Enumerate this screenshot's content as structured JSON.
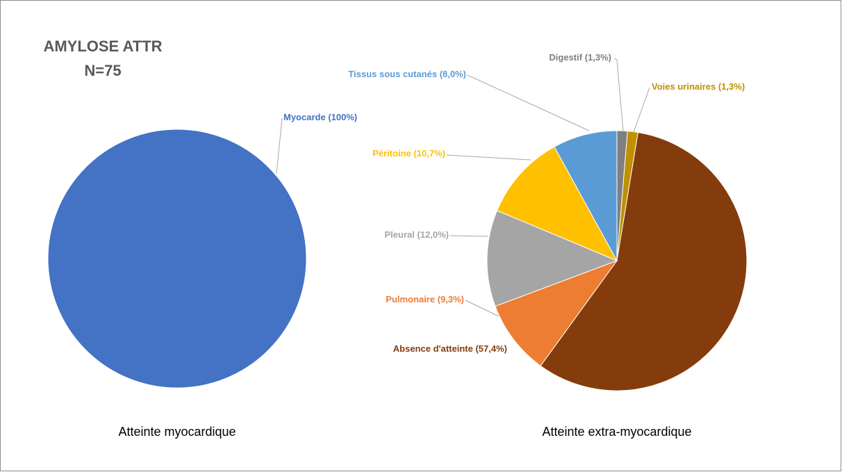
{
  "title": "AMYLOSE ATTR",
  "subtitle": "N=75",
  "chart_data": [
    {
      "type": "pie",
      "title": "Atteinte myocardique",
      "categories": [
        "Myocarde"
      ],
      "values": [
        100
      ],
      "value_labels": [
        "(100%)"
      ],
      "colors": [
        "#4472c4"
      ]
    },
    {
      "type": "pie",
      "title": "Atteinte extra-myocardique",
      "categories": [
        "Digestif",
        "Voies urinaires",
        "Absence d'atteinte",
        "Pulmonaire",
        "Pleural",
        "Péritoine",
        "Tissus sous cutanés"
      ],
      "values": [
        1.3,
        1.3,
        57.4,
        9.3,
        12.0,
        10.7,
        8.0
      ],
      "value_labels": [
        "(1,3%)",
        "(1,3%)",
        "(57,4%)",
        "(9,3%)",
        "(12,0%)",
        "(10,7%)",
        "(8,0%)"
      ],
      "colors": [
        "#7f7f7f",
        "#bf9000",
        "#843c0c",
        "#ed7d31",
        "#a5a5a5",
        "#ffc000",
        "#5b9bd5"
      ]
    }
  ]
}
